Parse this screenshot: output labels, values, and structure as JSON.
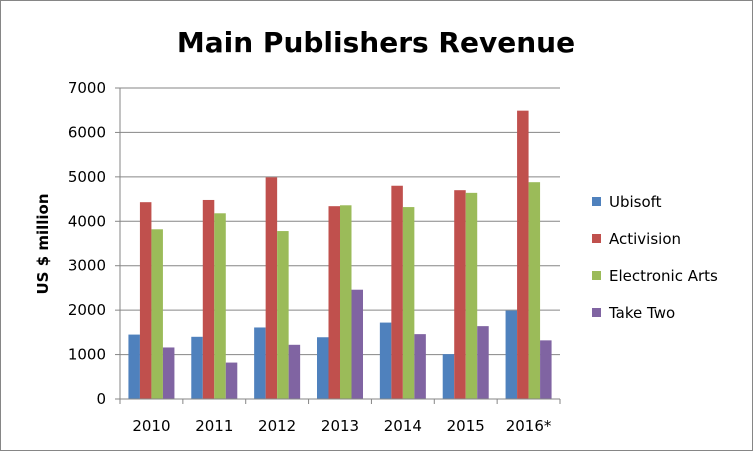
{
  "chart_data": {
    "type": "bar",
    "title": "Main Publishers Revenue",
    "ylabel": "US $ million",
    "xlabel": "",
    "categories": [
      "2010",
      "2011",
      "2012",
      "2013",
      "2014",
      "2015",
      "2016*"
    ],
    "ylim": [
      0,
      7000
    ],
    "yticks": [
      0,
      1000,
      2000,
      3000,
      4000,
      5000,
      6000,
      7000
    ],
    "grid": true,
    "legend_position": "right",
    "series": [
      {
        "name": "Ubisoft",
        "color": "#4F81BD",
        "values": [
          1450,
          1400,
          1610,
          1390,
          1720,
          1010,
          1990
        ]
      },
      {
        "name": "Activision",
        "color": "#C0504D",
        "values": [
          4430,
          4480,
          4990,
          4340,
          4800,
          4700,
          6490
        ]
      },
      {
        "name": "Electronic Arts",
        "color": "#9BBB59",
        "values": [
          3820,
          4180,
          3780,
          4360,
          4320,
          4640,
          4880
        ]
      },
      {
        "name": "Take Two",
        "color": "#8064A2",
        "values": [
          1160,
          820,
          1220,
          2460,
          1460,
          1640,
          1320
        ]
      }
    ]
  }
}
